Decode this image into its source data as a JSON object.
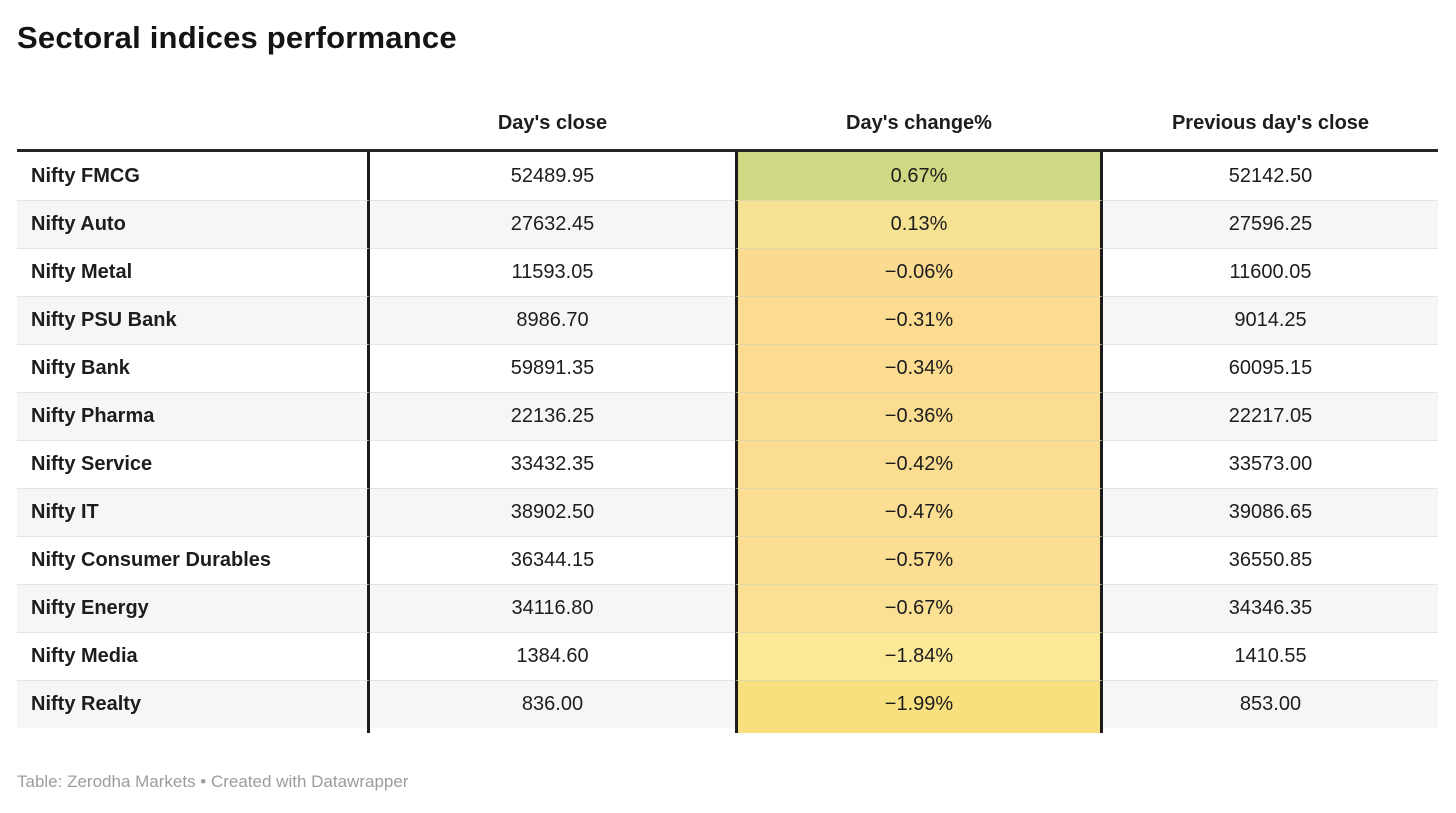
{
  "title": "Sectoral indices performance",
  "table": {
    "columns": {
      "label": "",
      "close": "Day's close",
      "change": "Day's change%",
      "prev": "Previous day's close"
    },
    "rows": [
      {
        "name": "Nifty FMCG",
        "close": "52489.95",
        "change": "0.67%",
        "prev": "52142.50",
        "color": "#cfd883"
      },
      {
        "name": "Nifty Auto",
        "close": "27632.45",
        "change": "0.13%",
        "prev": "27596.25",
        "color": "#f6e293"
      },
      {
        "name": "Nifty Metal",
        "close": "11593.05",
        "change": "−0.06%",
        "prev": "11600.05",
        "color": "#fbdb90"
      },
      {
        "name": "Nifty PSU Bank",
        "close": "8986.70",
        "change": "−0.31%",
        "prev": "9014.25",
        "color": "#fbdc90"
      },
      {
        "name": "Nifty Bank",
        "close": "59891.35",
        "change": "−0.34%",
        "prev": "60095.15",
        "color": "#fbdc91"
      },
      {
        "name": "Nifty Pharma",
        "close": "22136.25",
        "change": "−0.36%",
        "prev": "22217.05",
        "color": "#fbdd91"
      },
      {
        "name": "Nifty Service",
        "close": "33432.35",
        "change": "−0.42%",
        "prev": "33573.00",
        "color": "#fbdd92"
      },
      {
        "name": "Nifty IT",
        "close": "38902.50",
        "change": "−0.47%",
        "prev": "39086.65",
        "color": "#fbde92"
      },
      {
        "name": "Nifty Consumer Durables",
        "close": "36344.15",
        "change": "−0.57%",
        "prev": "36550.85",
        "color": "#fbde93"
      },
      {
        "name": "Nifty Energy",
        "close": "34116.80",
        "change": "−0.67%",
        "prev": "34346.35",
        "color": "#fbdf94"
      },
      {
        "name": "Nifty Media",
        "close": "1384.60",
        "change": "−1.84%",
        "prev": "1410.55",
        "color": "#fbe998"
      },
      {
        "name": "Nifty Realty",
        "close": "836.00",
        "change": "−1.99%",
        "prev": "853.00",
        "color": "#f9e07f"
      }
    ],
    "bottom_strip_color": "#f9e07f"
  },
  "footer": {
    "text": "Table: Zerodha Markets • Created with Datawrapper"
  },
  "colors": {
    "positive_high": "#cfd883",
    "neutral_yellow": "#fbdc91",
    "negative_deep": "#f9e07f",
    "row_alt": "#f6f6f6",
    "rule_dark": "#262626",
    "divider_dark": "#1b1b1b",
    "footer_text": "#9c9c9c"
  },
  "chart_data": {
    "type": "table",
    "title": "Sectoral indices performance",
    "categories": [
      "Nifty FMCG",
      "Nifty Auto",
      "Nifty Metal",
      "Nifty PSU Bank",
      "Nifty Bank",
      "Nifty Pharma",
      "Nifty Service",
      "Nifty IT",
      "Nifty Consumer Durables",
      "Nifty Energy",
      "Nifty Media",
      "Nifty Realty"
    ],
    "series": [
      {
        "name": "Day's close",
        "values": [
          52489.95,
          27632.45,
          11593.05,
          8986.7,
          59891.35,
          22136.25,
          33432.35,
          38902.5,
          36344.15,
          34116.8,
          1384.6,
          836.0
        ]
      },
      {
        "name": "Day's change%",
        "values": [
          0.67,
          0.13,
          -0.06,
          -0.31,
          -0.34,
          -0.36,
          -0.42,
          -0.47,
          -0.57,
          -0.67,
          -1.84,
          -1.99
        ]
      },
      {
        "name": "Previous day's close",
        "values": [
          52142.5,
          27596.25,
          11600.05,
          9014.25,
          60095.15,
          22217.05,
          33573.0,
          39086.65,
          36550.85,
          34346.35,
          1410.55,
          853.0
        ]
      }
    ],
    "notes": "Day's change% column uses a green-to-yellow heatmap fill; source: Table: Zerodha Markets • Created with Datawrapper"
  }
}
